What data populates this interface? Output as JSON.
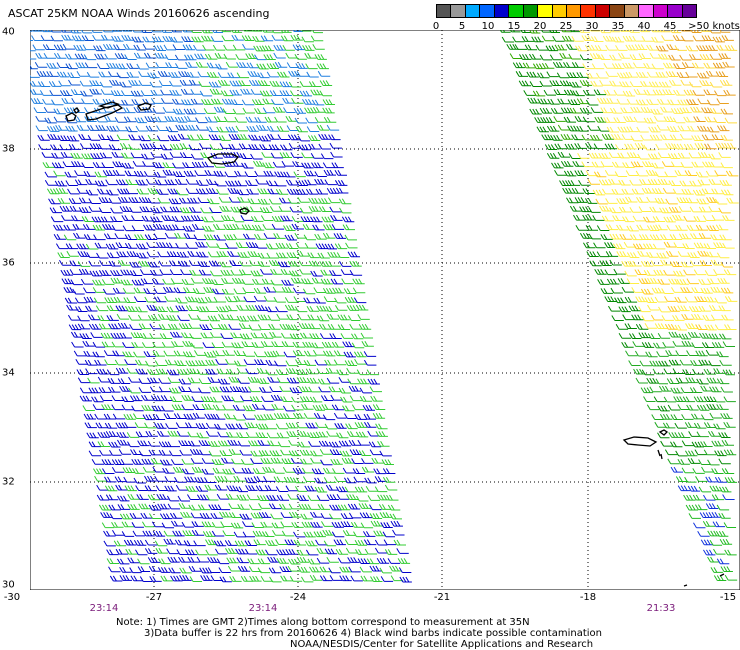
{
  "header": {
    "title": "ASCAT 25KM NOAA Winds 20160626 ascending"
  },
  "legend": {
    "colors": [
      "#555555",
      "#999999",
      "#00aaff",
      "#0066ff",
      "#0000cc",
      "#00cc00",
      "#009900",
      "#ffff00",
      "#ffcc00",
      "#ff9900",
      "#ff3300",
      "#cc0000",
      "#8b4513",
      "#cc9966",
      "#ff66ff",
      "#cc00cc",
      "#9900cc",
      "#660099"
    ],
    "labels": [
      "0",
      "5",
      "10",
      "15",
      "20",
      "25",
      "30",
      "35",
      "40",
      "45",
      ">50 knots"
    ]
  },
  "axes": {
    "y_labels": [
      "40",
      "38",
      "36",
      "34",
      "32",
      "30"
    ],
    "x_labels": [
      "-30",
      "-27",
      "-24",
      "-21",
      "-18",
      "-15"
    ]
  },
  "times": [
    "23:14",
    "23:14",
    "21:33"
  ],
  "notes": {
    "line1": "Note: 1) Times are GMT 2)Times along bottom correspond to measurement at 35N",
    "line2": "3)Data buffer is 22 hrs from 20160626 4) Black wind barbs indicate possible contamination",
    "line3": "NOAA/NESDIS/Center for Satellite Applications and Research"
  }
}
